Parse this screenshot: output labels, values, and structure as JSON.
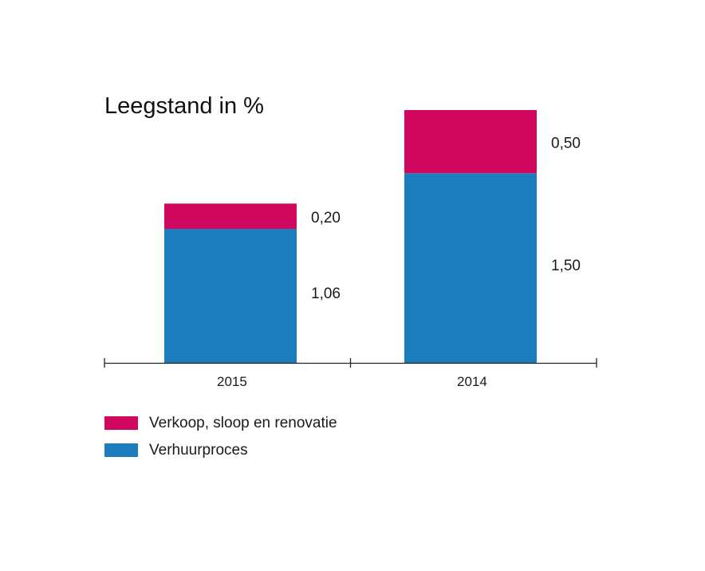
{
  "chart_data": {
    "type": "bar",
    "stacked": true,
    "title": "Leegstand in %",
    "xlabel": "",
    "ylabel": "",
    "categories": [
      "2015",
      "2014"
    ],
    "series": [
      {
        "name": "Verhuurproces",
        "values": [
          1.06,
          1.5
        ],
        "labels": [
          "1,06",
          "1,50"
        ],
        "color": "#1c7dbc"
      },
      {
        "name": "Verkoop, sloop en renovatie",
        "values": [
          0.2,
          0.5
        ],
        "labels": [
          "0,20",
          "0,50"
        ],
        "color": "#d1075f"
      }
    ],
    "ylim": [
      0,
      2.0
    ],
    "grid": false,
    "legend": "bottom-left"
  }
}
